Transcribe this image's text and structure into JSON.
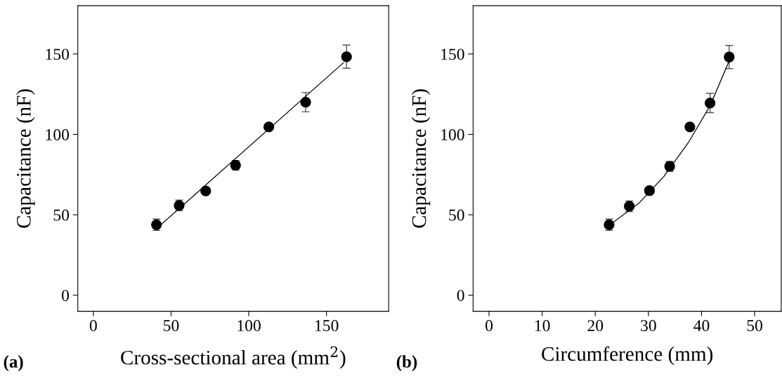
{
  "chart_data": [
    {
      "type": "scatter",
      "xlabel": "Cross-sectional area (mm$^{2}$)",
      "ylabel": "Capacitance (nF)",
      "annotations": [
        "(a)"
      ],
      "grid": false,
      "xlim": [
        -10,
        190
      ],
      "xticks": [
        0,
        50,
        100,
        150
      ],
      "ylim": [
        -10,
        180
      ],
      "yticks": [
        0,
        50,
        100,
        150
      ],
      "series": [
        {
          "color": "#000000",
          "marker": "circle",
          "x": [
            40.6,
            55.2,
            72.3,
            91.5,
            112.9,
            136.6,
            162.9
          ],
          "values": [
            43.8,
            55.8,
            64.8,
            80.8,
            104.6,
            120.0,
            148.3
          ],
          "errors": [
            3.5,
            3.3,
            null,
            3,
            null,
            6,
            7.2
          ]
        },
        {
          "type": "line",
          "marker": "none",
          "color": "#000000",
          "x": [
            43,
            161
          ],
          "values": [
            43.4,
            144.6
          ]
        }
      ]
    },
    {
      "type": "scatter",
      "xlabel": "Circumference (mm)",
      "ylabel": "Capacitance (nF)",
      "annotations": [
        "(b)"
      ],
      "grid": false,
      "xlim": [
        -3,
        55
      ],
      "xticks": [
        0,
        10,
        20,
        30,
        40,
        50
      ],
      "ylim": [
        -10,
        180
      ],
      "yticks": [
        0,
        50,
        100,
        150
      ],
      "series": [
        {
          "color": "#000000",
          "marker": "circle",
          "x": [
            22.6,
            26.4,
            30.2,
            34.0,
            37.8,
            41.6,
            45.2
          ],
          "values": [
            43.8,
            55.3,
            65.0,
            80.1,
            104.6,
            119.5,
            148.1
          ],
          "errors": [
            3.5,
            3.3,
            null,
            3,
            null,
            6,
            7.2
          ]
        },
        {
          "type": "line",
          "marker": "none",
          "color": "#000000",
          "x": [
            23.1,
            28.3,
            32.9,
            37.6,
            41.6,
            45.2
          ],
          "values": [
            44.6,
            57.5,
            73.8,
            95.3,
            117.7,
            145.7
          ]
        }
      ]
    }
  ]
}
